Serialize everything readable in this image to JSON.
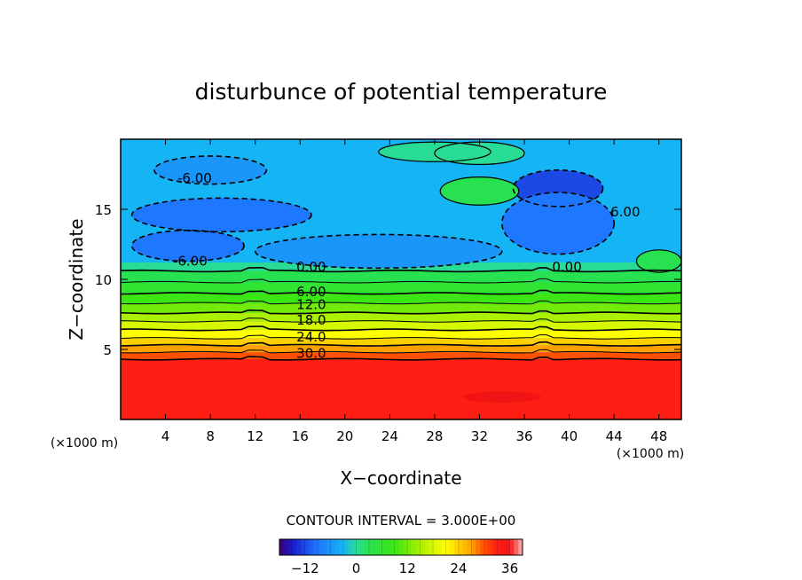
{
  "chart_data": {
    "type": "heatmap",
    "title": "disturbunce of potential temperature",
    "xlabel": "X−coordinate",
    "ylabel": "Z−coordinate",
    "x_unit": "(×1000 m)",
    "y_unit": "(×1000 m)",
    "xlim": [
      0,
      50
    ],
    "ylim": [
      0,
      20
    ],
    "x_ticks": [
      4,
      8,
      12,
      16,
      20,
      24,
      28,
      32,
      36,
      40,
      44,
      48
    ],
    "y_ticks": [
      5,
      10,
      15
    ],
    "contour_interval_label": "CONTOUR INTERVAL = 3.000E+00",
    "colorbar": {
      "range": [
        -18,
        39
      ],
      "ticks": [
        -12,
        0,
        12,
        24,
        36
      ]
    },
    "contour_labels": [
      {
        "text": "-6.00",
        "x": 6.6,
        "z": 17.2
      },
      {
        "text": "-6.00",
        "x": 6.2,
        "z": 11.3
      },
      {
        "text": "6.00",
        "x": 45.0,
        "z": 14.8
      },
      {
        "text": "0.00",
        "x": 17.0,
        "z": 10.9
      },
      {
        "text": "0.00",
        "x": 39.8,
        "z": 10.9
      },
      {
        "text": "6.00",
        "x": 17.0,
        "z": 9.1
      },
      {
        "text": "12.0",
        "x": 17.0,
        "z": 8.2
      },
      {
        "text": "18.0",
        "x": 17.0,
        "z": 7.1
      },
      {
        "text": "24.0",
        "x": 17.0,
        "z": 5.9
      },
      {
        "text": "30.0",
        "x": 17.0,
        "z": 4.7
      }
    ],
    "band_layers": [
      {
        "z": [
          0,
          4.3
        ],
        "value": 33
      },
      {
        "z": [
          4.3,
          4.8
        ],
        "value": 30
      },
      {
        "z": [
          4.8,
          5.3
        ],
        "value": 27
      },
      {
        "z": [
          5.3,
          5.8
        ],
        "value": 24
      },
      {
        "z": [
          5.8,
          6.4
        ],
        "value": 21
      },
      {
        "z": [
          6.4,
          7.0
        ],
        "value": 18
      },
      {
        "z": [
          7.0,
          7.6
        ],
        "value": 15
      },
      {
        "z": [
          7.6,
          8.3
        ],
        "value": 12
      },
      {
        "z": [
          8.3,
          9.0
        ],
        "value": 9
      },
      {
        "z": [
          9.0,
          9.8
        ],
        "value": 6
      },
      {
        "z": [
          9.8,
          10.6
        ],
        "value": 3
      },
      {
        "z": [
          10.6,
          11.2
        ],
        "value": 0
      }
    ],
    "upper_value": -3,
    "cold_patches": [
      {
        "x": 9,
        "z": 14.6,
        "rx": 8,
        "rz": 1.2,
        "value": -9
      },
      {
        "x": 6,
        "z": 12.4,
        "rx": 5,
        "rz": 1.1,
        "value": -9
      },
      {
        "x": 23,
        "z": 12.0,
        "rx": 11,
        "rz": 1.2,
        "value": -6
      },
      {
        "x": 39,
        "z": 16.5,
        "rx": 4,
        "rz": 1.3,
        "value": -12
      },
      {
        "x": 39,
        "z": 14.0,
        "rx": 5,
        "rz": 2.2,
        "value": -9
      },
      {
        "x": 8,
        "z": 17.8,
        "rx": 5,
        "rz": 1.0,
        "value": -6
      }
    ],
    "warm_patches": [
      {
        "x": 32,
        "z": 16.3,
        "rx": 3.5,
        "rz": 1.0,
        "value": 3
      },
      {
        "x": 32,
        "z": 19.0,
        "rx": 4,
        "rz": 0.8,
        "value": 0
      },
      {
        "x": 48,
        "z": 11.3,
        "rx": 2,
        "rz": 0.8,
        "value": 3
      },
      {
        "x": 28,
        "z": 19.1,
        "rx": 5,
        "rz": 0.7,
        "value": 0
      }
    ],
    "hot_spot": {
      "x": 34,
      "z": 1.6,
      "rx": 3.5,
      "rz": 0.4,
      "value": 36
    },
    "contour_lines_z": [
      4.3,
      4.8,
      5.3,
      5.8,
      6.4,
      7.0,
      7.6,
      8.3,
      9.0,
      9.8,
      10.6
    ]
  }
}
